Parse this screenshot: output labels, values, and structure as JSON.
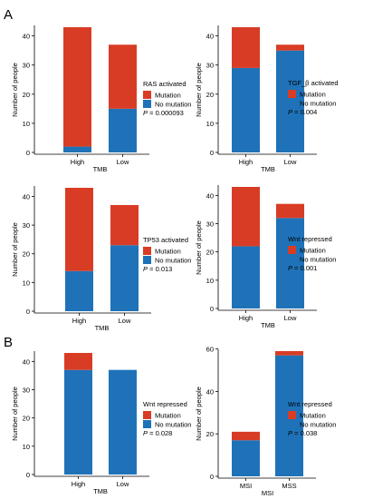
{
  "figure": {
    "panel_labels": [
      "A",
      "B"
    ],
    "colors": {
      "mutation": "#d93c25",
      "no_mutation": "#1f72b8"
    },
    "legend_items": [
      "Mutation",
      "No mutation"
    ],
    "ylabel": "Number of people"
  },
  "chart_data": [
    {
      "type": "bar",
      "stacked": true,
      "panel": "A",
      "title": "RAS activated",
      "xlabel": "TMB",
      "ylabel": "Number of people",
      "categories": [
        "High",
        "Low"
      ],
      "series": [
        {
          "name": "Mutation",
          "values": [
            41,
            22
          ]
        },
        {
          "name": "No mutation",
          "values": [
            2,
            15
          ]
        }
      ],
      "ylim": [
        0,
        43
      ],
      "yticks": [
        0,
        10,
        20,
        30,
        40
      ],
      "pvalue": "0.000093",
      "legend_placement": "right"
    },
    {
      "type": "bar",
      "stacked": true,
      "panel": "A",
      "title": "TGF_β activated",
      "xlabel": "TMB",
      "ylabel": "Number of people",
      "categories": [
        "High",
        "Low"
      ],
      "series": [
        {
          "name": "Mutation",
          "values": [
            14,
            2
          ]
        },
        {
          "name": "No mutation",
          "values": [
            29,
            35
          ]
        }
      ],
      "ylim": [
        0,
        43
      ],
      "yticks": [
        0,
        10,
        20,
        30,
        40
      ],
      "pvalue": "0.004",
      "legend_placement": "right"
    },
    {
      "type": "bar",
      "stacked": true,
      "panel": "A",
      "title": "TP53 activated",
      "xlabel": "TMB",
      "ylabel": "Number of people",
      "categories": [
        "High",
        "Low"
      ],
      "series": [
        {
          "name": "Mutation",
          "values": [
            29,
            14
          ]
        },
        {
          "name": "No mutation",
          "values": [
            14,
            23
          ]
        }
      ],
      "ylim": [
        0,
        43
      ],
      "yticks": [
        0,
        10,
        20,
        30,
        40
      ],
      "pvalue": "0.013",
      "legend_placement": "right"
    },
    {
      "type": "bar",
      "stacked": true,
      "panel": "A",
      "title": "Wnt repressed",
      "xlabel": "TMB",
      "ylabel": "Number of people",
      "categories": [
        "High",
        "Low"
      ],
      "series": [
        {
          "name": "Mutation",
          "values": [
            21,
            5
          ]
        },
        {
          "name": "No mutation",
          "values": [
            22,
            32
          ]
        }
      ],
      "ylim": [
        0,
        43
      ],
      "yticks": [
        0,
        10,
        20,
        30,
        40
      ],
      "pvalue": "0.001",
      "legend_placement": "right"
    },
    {
      "type": "bar",
      "stacked": true,
      "panel": "B",
      "title": "Wnt repressed",
      "xlabel": "TMB",
      "ylabel": "Number of people",
      "categories": [
        "High",
        "Low"
      ],
      "series": [
        {
          "name": "Mutation",
          "values": [
            6,
            0
          ]
        },
        {
          "name": "No mutation",
          "values": [
            37,
            37
          ]
        }
      ],
      "ylim": [
        0,
        43
      ],
      "yticks": [
        0,
        10,
        20,
        30,
        40
      ],
      "pvalue": "0.028",
      "legend_placement": "right"
    },
    {
      "type": "bar",
      "stacked": true,
      "panel": "B",
      "title": "Wnt repressed",
      "xlabel": "MSI",
      "ylabel": "Number of people",
      "categories": [
        "MSI",
        "MSS"
      ],
      "series": [
        {
          "name": "Mutation",
          "values": [
            4,
            2
          ]
        },
        {
          "name": "No mutation",
          "values": [
            17,
            57
          ]
        }
      ],
      "ylim": [
        0,
        59
      ],
      "yticks": [
        0,
        20,
        40,
        60
      ],
      "pvalue": "0.038",
      "legend_placement": "right"
    }
  ]
}
